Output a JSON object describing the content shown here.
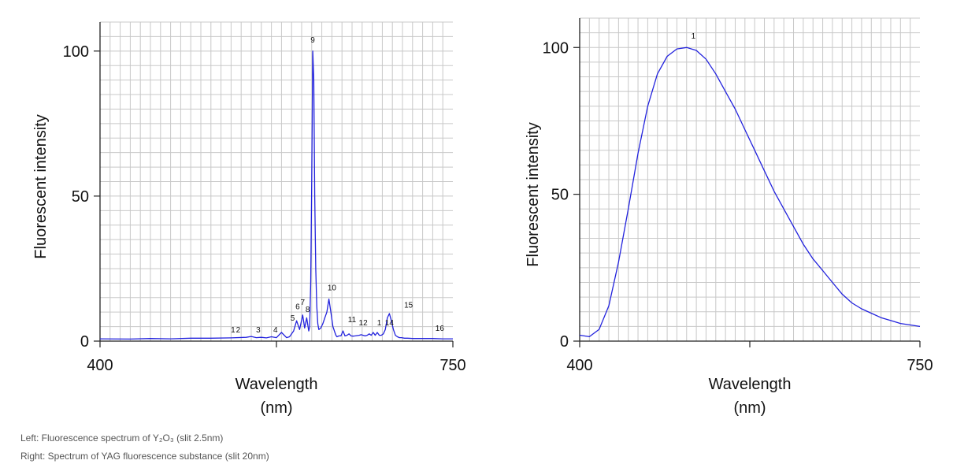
{
  "chart_data": [
    {
      "type": "line",
      "title": "",
      "xlabel": "Wavelength",
      "xunit": "(nm)",
      "ylabel": "Fluorescent intensity",
      "xlim": [
        400,
        750
      ],
      "ylim": [
        0,
        110
      ],
      "x_tick_labels": [
        "400",
        "750"
      ],
      "y_ticks": [
        0,
        50,
        100
      ],
      "y_tick_labels": [
        "0",
        "50",
        "100"
      ],
      "grid": true,
      "series": [
        {
          "name": "Y2O3",
          "color": "#2222dd",
          "x": [
            400,
            430,
            450,
            470,
            490,
            510,
            530,
            545,
            550,
            555,
            560,
            565,
            570,
            575,
            580,
            585,
            588,
            592,
            595,
            598,
            601,
            603,
            605,
            607,
            608,
            609,
            610,
            611,
            612,
            613,
            614,
            615,
            616,
            617,
            619,
            621,
            623,
            625,
            627,
            629,
            631,
            633,
            634,
            635,
            637,
            639,
            641,
            643,
            645,
            647,
            649,
            651,
            653,
            655,
            657,
            659,
            661,
            663,
            665,
            667,
            669,
            671,
            673,
            675,
            677,
            679,
            681,
            683,
            685,
            687,
            689,
            691,
            693,
            695,
            697,
            699,
            702,
            705,
            710,
            720,
            730,
            740,
            750
          ],
          "y": [
            0.8,
            0.7,
            0.9,
            0.8,
            1.0,
            1.0,
            1.1,
            1.3,
            1.6,
            1.2,
            1.3,
            1.1,
            1.5,
            1.2,
            3.0,
            1.2,
            1.5,
            3.5,
            7.0,
            4.0,
            9.0,
            4.5,
            8.0,
            3.5,
            5.0,
            20.0,
            55.0,
            100.0,
            90.0,
            50.0,
            25.0,
            12.0,
            6.0,
            4.0,
            4.5,
            6.0,
            8.0,
            10.0,
            14.5,
            10.0,
            5.0,
            3.0,
            2.0,
            1.5,
            1.8,
            1.8,
            3.5,
            1.8,
            2.0,
            2.5,
            1.8,
            1.7,
            1.8,
            1.9,
            2.0,
            2.2,
            2.0,
            1.8,
            2.0,
            2.5,
            2.0,
            3.0,
            2.0,
            3.0,
            2.0,
            2.0,
            2.5,
            4.0,
            8.0,
            9.5,
            7.0,
            4.0,
            2.0,
            1.5,
            1.2,
            1.2,
            1.0,
            1.0,
            0.9,
            0.9,
            0.9,
            0.8,
            0.8
          ]
        }
      ],
      "annotations": [
        {
          "label": "1",
          "x": 532,
          "y": 3
        },
        {
          "label": "2",
          "x": 537,
          "y": 3
        },
        {
          "label": "3",
          "x": 557,
          "y": 3
        },
        {
          "label": "4",
          "x": 574,
          "y": 3
        },
        {
          "label": "5",
          "x": 591,
          "y": 7
        },
        {
          "label": "6",
          "x": 596,
          "y": 11
        },
        {
          "label": "7",
          "x": 601,
          "y": 12.5
        },
        {
          "label": "8",
          "x": 606,
          "y": 10
        },
        {
          "label": "9",
          "x": 611,
          "y": 103
        },
        {
          "label": "10",
          "x": 630,
          "y": 17.5
        },
        {
          "label": "11",
          "x": 650,
          "y": 6.5
        },
        {
          "label": "12",
          "x": 661,
          "y": 5.5
        },
        {
          "label": "1",
          "x": 677,
          "y": 5.5
        },
        {
          "label": "14",
          "x": 687,
          "y": 5.5
        },
        {
          "label": "15",
          "x": 706,
          "y": 11.5
        },
        {
          "label": "16",
          "x": 737,
          "y": 3.5
        }
      ]
    },
    {
      "type": "line",
      "title": "",
      "xlabel": "Wavelength",
      "xunit": "(nm)",
      "ylabel": "Fluorescent intensity",
      "xlim": [
        400,
        750
      ],
      "ylim": [
        0,
        110
      ],
      "x_tick_labels": [
        "400",
        "750"
      ],
      "y_ticks": [
        0,
        50,
        100
      ],
      "y_tick_labels": [
        "0",
        "50",
        "100"
      ],
      "grid": true,
      "series": [
        {
          "name": "YAG",
          "color": "#2222dd",
          "x": [
            400,
            410,
            420,
            430,
            440,
            450,
            460,
            470,
            480,
            490,
            500,
            510,
            520,
            530,
            540,
            550,
            560,
            570,
            580,
            590,
            600,
            610,
            620,
            630,
            640,
            650,
            660,
            670,
            680,
            690,
            700,
            710,
            720,
            730,
            740,
            750
          ],
          "y": [
            2,
            1.5,
            4,
            12,
            27,
            45,
            64,
            80,
            91,
            97,
            99.5,
            100,
            99,
            96,
            91,
            85,
            79,
            72,
            65,
            58,
            51,
            45,
            39,
            33,
            28,
            24,
            20,
            16,
            13,
            11,
            9.5,
            8,
            7,
            6,
            5.5,
            5
          ]
        }
      ],
      "annotations": [
        {
          "label": "1",
          "x": 517,
          "y": 103
        }
      ]
    }
  ],
  "captions": {
    "left": "Left: Fluorescence spectrum of Y₂O₃  (slit 2.5nm)",
    "right": "Right: Spectrum of YAG fluorescence substance (slit 20nm)"
  }
}
